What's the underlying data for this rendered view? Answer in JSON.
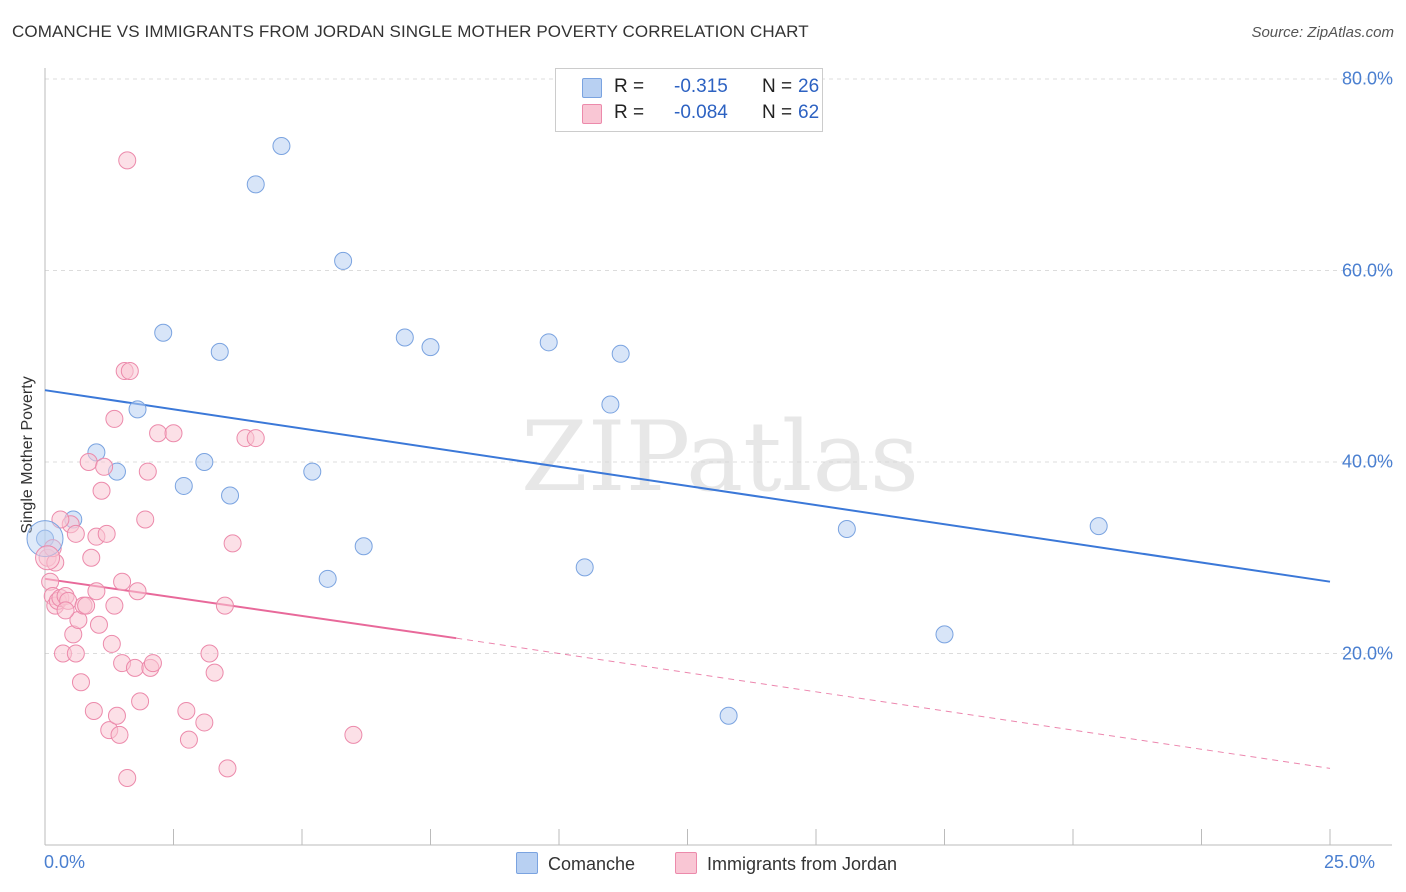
{
  "title": "COMANCHE VS IMMIGRANTS FROM JORDAN SINGLE MOTHER POVERTY CORRELATION CHART",
  "source": "Source: ZipAtlas.com",
  "watermark": "ZIPatlas",
  "legend": {
    "r_label": "R =",
    "n_label": "N =",
    "series": [
      {
        "name": "Comanche",
        "r": "-0.315",
        "n": "26",
        "fill": "#b8d0f2",
        "stroke": "#7aa3e0"
      },
      {
        "name": "Immigrants from Jordan",
        "r": "-0.084",
        "n": "62",
        "fill": "#f9c6d4",
        "stroke": "#ec8aab"
      }
    ]
  },
  "chart_data": {
    "type": "scatter",
    "title": "COMANCHE VS IMMIGRANTS FROM JORDAN SINGLE MOTHER POVERTY CORRELATION CHART",
    "xlabel": "",
    "ylabel": "Single Mother Poverty",
    "xlim": [
      0,
      25
    ],
    "ylim": [
      0,
      80
    ],
    "x_tick_labels": [
      "0.0%",
      "25.0%"
    ],
    "y_ticks": [
      20,
      40,
      60,
      80
    ],
    "y_tick_labels": [
      "20.0%",
      "40.0%",
      "60.0%",
      "80.0%"
    ],
    "series": [
      {
        "name": "Comanche",
        "color": "#7aa3e0",
        "points": [
          [
            0.0,
            32.0
          ],
          [
            0.55,
            34.0
          ],
          [
            1.0,
            41.0
          ],
          [
            1.4,
            39.0
          ],
          [
            1.8,
            45.5
          ],
          [
            2.3,
            53.5
          ],
          [
            2.7,
            37.5
          ],
          [
            3.1,
            40.0
          ],
          [
            3.4,
            51.5
          ],
          [
            3.6,
            36.5
          ],
          [
            4.1,
            69.0
          ],
          [
            4.6,
            73.0
          ],
          [
            5.2,
            39.0
          ],
          [
            5.5,
            27.8
          ],
          [
            5.8,
            61.0
          ],
          [
            6.2,
            31.2
          ],
          [
            7.0,
            53.0
          ],
          [
            7.5,
            52.0
          ],
          [
            9.8,
            52.5
          ],
          [
            10.5,
            29.0
          ],
          [
            11.0,
            46.0
          ],
          [
            11.2,
            51.3
          ],
          [
            13.3,
            13.5
          ],
          [
            15.6,
            33.0
          ],
          [
            17.5,
            22.0
          ],
          [
            20.5,
            33.3
          ]
        ],
        "trend": {
          "x": [
            0,
            25
          ],
          "y": [
            47.5,
            27.5
          ],
          "style": "solid"
        }
      },
      {
        "name": "Immigrants from Jordan",
        "color": "#ec8aab",
        "points": [
          [
            0.05,
            30.0
          ],
          [
            0.1,
            27.5
          ],
          [
            0.15,
            26.0
          ],
          [
            0.2,
            25.0
          ],
          [
            0.25,
            25.5
          ],
          [
            0.3,
            25.8
          ],
          [
            0.35,
            20.0
          ],
          [
            0.4,
            26.0
          ],
          [
            0.45,
            25.5
          ],
          [
            0.5,
            33.5
          ],
          [
            0.55,
            22.0
          ],
          [
            0.6,
            20.0
          ],
          [
            0.6,
            32.5
          ],
          [
            0.65,
            23.5
          ],
          [
            0.7,
            17.0
          ],
          [
            0.75,
            25.0
          ],
          [
            0.8,
            25.0
          ],
          [
            0.85,
            40.0
          ],
          [
            0.9,
            30.0
          ],
          [
            0.95,
            14.0
          ],
          [
            1.0,
            26.5
          ],
          [
            1.0,
            32.2
          ],
          [
            1.05,
            23.0
          ],
          [
            1.1,
            37.0
          ],
          [
            1.15,
            39.5
          ],
          [
            1.2,
            32.5
          ],
          [
            1.25,
            12.0
          ],
          [
            1.3,
            21.0
          ],
          [
            1.35,
            25.0
          ],
          [
            1.35,
            44.5
          ],
          [
            1.4,
            13.5
          ],
          [
            1.45,
            11.5
          ],
          [
            1.5,
            19.0
          ],
          [
            1.5,
            27.5
          ],
          [
            1.55,
            49.5
          ],
          [
            1.6,
            7.0
          ],
          [
            1.6,
            71.5
          ],
          [
            1.65,
            49.5
          ],
          [
            1.75,
            18.5
          ],
          [
            1.8,
            26.5
          ],
          [
            1.85,
            15.0
          ],
          [
            1.95,
            34.0
          ],
          [
            2.0,
            39.0
          ],
          [
            2.05,
            18.5
          ],
          [
            2.1,
            19.0
          ],
          [
            2.2,
            43.0
          ],
          [
            2.5,
            43.0
          ],
          [
            2.75,
            14.0
          ],
          [
            2.8,
            11.0
          ],
          [
            3.1,
            12.8
          ],
          [
            3.2,
            20.0
          ],
          [
            3.3,
            18.0
          ],
          [
            3.5,
            25.0
          ],
          [
            3.55,
            8.0
          ],
          [
            3.65,
            31.5
          ],
          [
            3.9,
            42.5
          ],
          [
            4.1,
            42.5
          ],
          [
            6.0,
            11.5
          ],
          [
            0.3,
            34.0
          ],
          [
            0.2,
            29.5
          ],
          [
            0.4,
            24.5
          ],
          [
            0.15,
            31.0
          ]
        ],
        "trend": {
          "x": [
            0,
            8.0
          ],
          "y": [
            27.8,
            21.6
          ],
          "style": "solid",
          "extension": {
            "x": [
              8.0,
              25
            ],
            "y": [
              21.6,
              8.0
            ],
            "style": "dashed"
          }
        }
      }
    ]
  }
}
